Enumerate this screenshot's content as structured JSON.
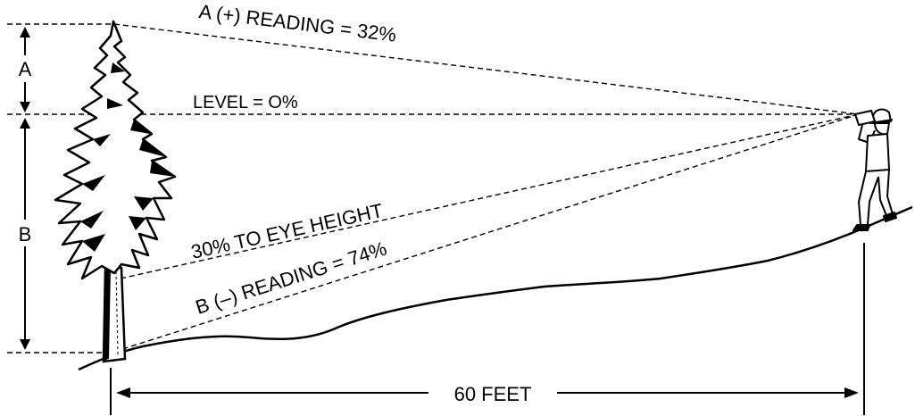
{
  "labels": {
    "a_reading": "A (+) READING = 32%",
    "level": "LEVEL = O%",
    "eye_height": "30% TO EYE HEIGHT",
    "b_reading": "B (–) READING = 74%",
    "a_marker": "A",
    "b_marker": "B",
    "distance": "60 FEET"
  },
  "readings": {
    "a_percent": 32,
    "level_percent": 0,
    "eye_height_percent": 30,
    "b_percent": 74,
    "distance_feet": 60
  },
  "colors": {
    "ink": "#000000",
    "background": "#ffffff"
  }
}
